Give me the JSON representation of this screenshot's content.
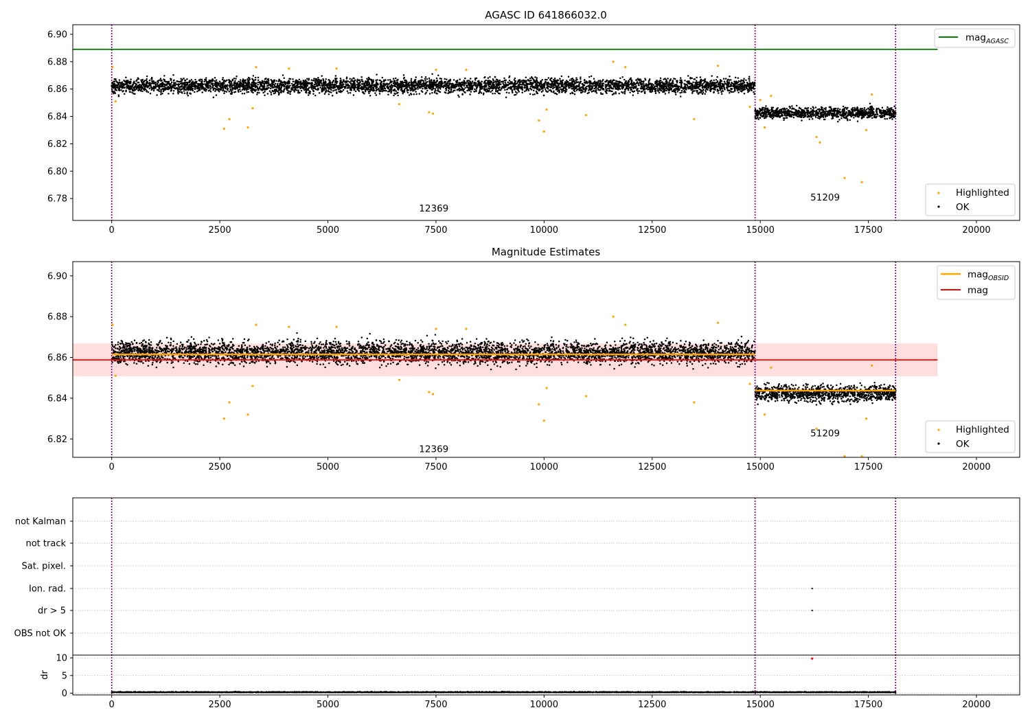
{
  "chart_data": [
    {
      "type": "scatter",
      "title": "AGASC ID 641866032.0",
      "xlim": [
        -900,
        21000
      ],
      "ylim": [
        6.764,
        6.907
      ],
      "xticks": [
        "0",
        "2500",
        "5000",
        "7500",
        "10000",
        "12500",
        "15000",
        "17500",
        "20000"
      ],
      "xtick_values": [
        0,
        2500,
        5000,
        7500,
        10000,
        12500,
        15000,
        17500,
        20000
      ],
      "yticks": [
        "6.78",
        "6.80",
        "6.82",
        "6.84",
        "6.86",
        "6.88",
        "6.90"
      ],
      "ytick_values": [
        6.78,
        6.8,
        6.82,
        6.84,
        6.86,
        6.88,
        6.9
      ],
      "legend_placement": "top-right and lower-right",
      "legend_top": [
        {
          "name": "mag",
          "subscript": "AGASC",
          "color": "#008000",
          "marker": "line"
        }
      ],
      "legend_bottom": [
        {
          "name": "Highlighted",
          "color": "#ffa500",
          "marker": "dot"
        },
        {
          "name": "OK",
          "color": "#000000",
          "marker": "dot"
        }
      ],
      "hline": {
        "y": 6.889,
        "x_range": [
          -900,
          19100
        ],
        "color": "#008000"
      },
      "vlines": [
        0,
        14880,
        18130
      ],
      "vline_color": "#800080",
      "observations": [
        {
          "label": "12369",
          "x_range": [
            0,
            14880
          ],
          "mean": 6.8625,
          "spread": 0.004,
          "label_x": 7450,
          "label_y": 6.7705
        },
        {
          "label": "51209",
          "x_range": [
            14880,
            18130
          ],
          "mean": 6.8425,
          "spread": 0.003,
          "label_x": 16500,
          "label_y": 6.7785
        }
      ],
      "highlighted_points": [
        [
          20,
          6.876
        ],
        [
          90,
          6.851
        ],
        [
          2600,
          6.831
        ],
        [
          2720,
          6.838
        ],
        [
          3150,
          6.832
        ],
        [
          3260,
          6.846
        ],
        [
          3340,
          6.876
        ],
        [
          4100,
          6.875
        ],
        [
          6650,
          6.849
        ],
        [
          7340,
          6.843
        ],
        [
          7430,
          6.842
        ],
        [
          7500,
          6.874
        ],
        [
          9880,
          6.837
        ],
        [
          10000,
          6.829
        ],
        [
          10060,
          6.845
        ],
        [
          10970,
          6.841
        ],
        [
          11600,
          6.88
        ],
        [
          11880,
          6.876
        ],
        [
          13470,
          6.838
        ],
        [
          14020,
          6.877
        ],
        [
          14760,
          6.847
        ],
        [
          15100,
          6.832
        ],
        [
          15250,
          6.855
        ],
        [
          16300,
          6.825
        ],
        [
          16380,
          6.821
        ],
        [
          16950,
          6.795
        ],
        [
          17350,
          6.792
        ],
        [
          17450,
          6.83
        ],
        [
          17580,
          6.856
        ],
        [
          15000,
          6.852
        ],
        [
          8200,
          6.874
        ],
        [
          5200,
          6.875
        ]
      ]
    },
    {
      "type": "scatter",
      "title": "Magnitude Estimates",
      "xlim": [
        -900,
        21000
      ],
      "ylim": [
        6.811,
        6.907
      ],
      "xticks": [
        "0",
        "2500",
        "5000",
        "7500",
        "10000",
        "12500",
        "15000",
        "17500",
        "20000"
      ],
      "xtick_values": [
        0,
        2500,
        5000,
        7500,
        10000,
        12500,
        15000,
        17500,
        20000
      ],
      "yticks": [
        "6.82",
        "6.84",
        "6.86",
        "6.88",
        "6.90"
      ],
      "ytick_values": [
        6.82,
        6.84,
        6.86,
        6.88,
        6.9
      ],
      "legend_placement": "top-right and lower-right",
      "legend_top": [
        {
          "name": "mag",
          "subscript": "OBSID",
          "color": "#ffa500",
          "marker": "line"
        },
        {
          "name": "mag",
          "subscript": "",
          "color": "#ff0000",
          "marker": "line"
        }
      ],
      "legend_bottom": [
        {
          "name": "Highlighted",
          "color": "#ffa500",
          "marker": "dot"
        },
        {
          "name": "OK",
          "color": "#000000",
          "marker": "dot"
        }
      ],
      "hline": {
        "y": 6.8588,
        "x_range": [
          -900,
          19100
        ],
        "color": "#ff0000"
      },
      "band": {
        "y_range": [
          6.8508,
          6.8668
        ],
        "x_range": [
          -900,
          19100
        ],
        "color": "#ffb6b6"
      },
      "obsid_lines": [
        {
          "x_range": [
            0,
            14880
          ],
          "y": 6.8615
        },
        {
          "x_range": [
            14880,
            18130
          ],
          "y": 6.8437
        }
      ],
      "vlines": [
        0,
        14880,
        18130
      ],
      "vline_color": "#800080",
      "observations": [
        {
          "label": "12369",
          "x_range": [
            0,
            14880
          ],
          "mean": 6.8625,
          "spread": 0.004,
          "label_x": 7450,
          "label_y": 6.8135
        },
        {
          "label": "51209",
          "x_range": [
            14880,
            18130
          ],
          "mean": 6.8425,
          "spread": 0.003,
          "label_x": 16500,
          "label_y": 6.8213
        }
      ],
      "highlighted_points": [
        [
          20,
          6.876
        ],
        [
          90,
          6.851
        ],
        [
          2600,
          6.83
        ],
        [
          2720,
          6.838
        ],
        [
          3150,
          6.832
        ],
        [
          3260,
          6.846
        ],
        [
          3340,
          6.876
        ],
        [
          4100,
          6.875
        ],
        [
          6650,
          6.849
        ],
        [
          7340,
          6.843
        ],
        [
          7430,
          6.842
        ],
        [
          7500,
          6.874
        ],
        [
          9880,
          6.837
        ],
        [
          10000,
          6.829
        ],
        [
          10060,
          6.845
        ],
        [
          10970,
          6.841
        ],
        [
          11600,
          6.88
        ],
        [
          11880,
          6.876
        ],
        [
          13470,
          6.838
        ],
        [
          14020,
          6.877
        ],
        [
          14760,
          6.847
        ],
        [
          15100,
          6.832
        ],
        [
          15250,
          6.855
        ],
        [
          16300,
          6.825
        ],
        [
          17450,
          6.83
        ],
        [
          17580,
          6.856
        ],
        [
          16950,
          6.8115
        ],
        [
          17350,
          6.8115
        ],
        [
          8200,
          6.874
        ],
        [
          5200,
          6.875
        ]
      ]
    },
    {
      "type": "scatter",
      "title": "",
      "xlim": [
        -900,
        21000
      ],
      "xticks": [
        "0",
        "2500",
        "5000",
        "7500",
        "10000",
        "12500",
        "15000",
        "17500",
        "20000"
      ],
      "xtick_values": [
        0,
        2500,
        5000,
        7500,
        10000,
        12500,
        15000,
        17500,
        20000
      ],
      "flag_categories": [
        "not Kalman",
        "not track",
        "Sat. pixel.",
        "Ion. rad.",
        "dr > 5",
        "OBS not OK"
      ],
      "flag_points": [
        {
          "category": "Ion. rad.",
          "x": 16200
        },
        {
          "category": "dr > 5",
          "x": 16200
        }
      ],
      "ylabel": "dr",
      "dr_ylim": [
        -0.5,
        10.8
      ],
      "dr_yticks": [
        "0",
        "5",
        "10"
      ],
      "dr_ytick_values": [
        0,
        5,
        10
      ],
      "dr_outlier": {
        "x": 16200,
        "y": 9.8,
        "color": "#ff0000"
      },
      "dr_level": 0.2,
      "vlines": [
        0,
        14880,
        18130
      ],
      "vline_color": "#800080"
    }
  ]
}
